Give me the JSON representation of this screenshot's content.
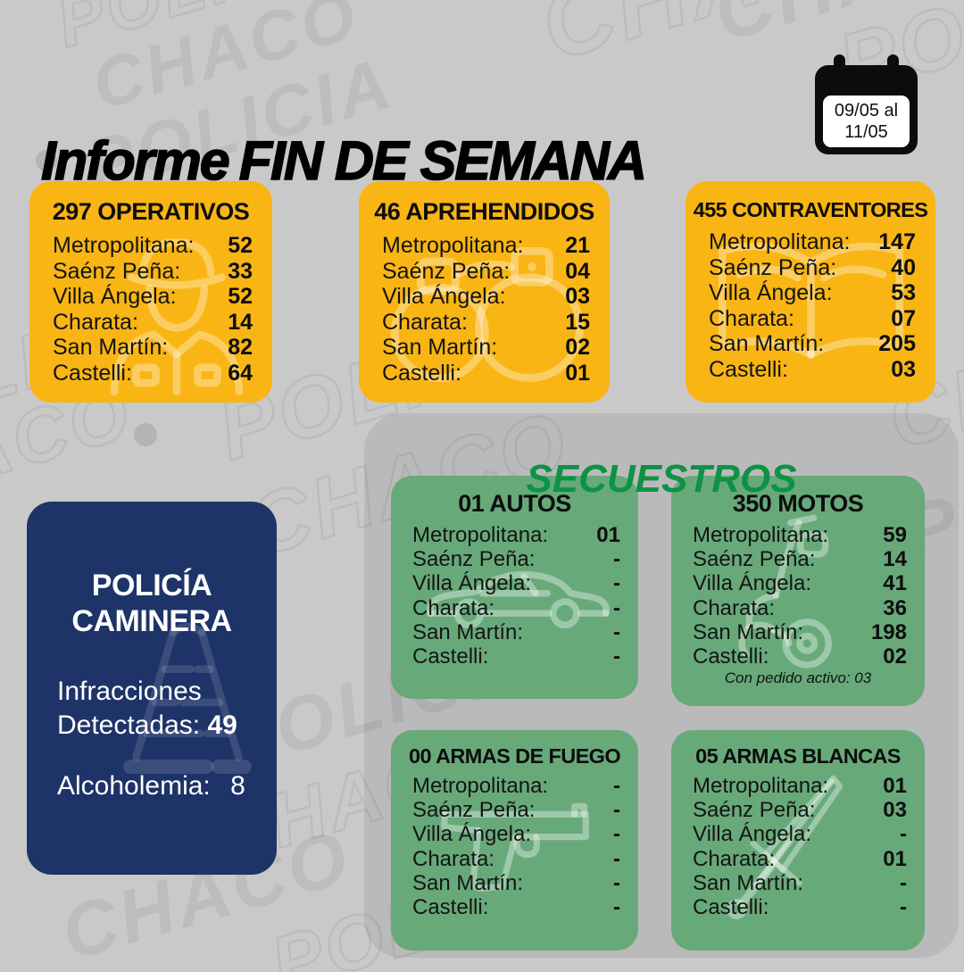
{
  "header": {
    "title_light": "Informe",
    "title_heavy": "FIN DE SEMANA",
    "calendar": {
      "line1": "09/05 al",
      "line2": "11/05"
    }
  },
  "summary_cards": [
    {
      "id": "operativos",
      "title": "297 OPERATIVOS",
      "icon": "police-officer-icon",
      "rows": [
        {
          "label": "Metropolitana:",
          "value": "52"
        },
        {
          "label": "Saénz Peña:",
          "value": "33"
        },
        {
          "label": "Villa Ángela:",
          "value": "52"
        },
        {
          "label": "Charata:",
          "value": "14"
        },
        {
          "label": "San Martín:",
          "value": "82"
        },
        {
          "label": "Castelli:",
          "value": "64"
        }
      ]
    },
    {
      "id": "aprehendidos",
      "title": "46 APREHENDIDOS",
      "icon": "handcuffs-icon",
      "rows": [
        {
          "label": "Metropolitana:",
          "value": "21"
        },
        {
          "label": "Saénz Peña:",
          "value": "04"
        },
        {
          "label": "Villa Ángela:",
          "value": "03"
        },
        {
          "label": "Charata:",
          "value": "15"
        },
        {
          "label": "San Martín:",
          "value": "02"
        },
        {
          "label": "Castelli:",
          "value": "01"
        }
      ]
    },
    {
      "id": "contraventores",
      "title": "455 CONTRAVENTORES",
      "icon": "open-book-icon",
      "rows": [
        {
          "label": "Metropolitana:",
          "value": "147"
        },
        {
          "label": "Saénz Peña:",
          "value": "40"
        },
        {
          "label": "Villa Ángela:",
          "value": "53"
        },
        {
          "label": "Charata:",
          "value": "07"
        },
        {
          "label": "San Martín:",
          "value": "205"
        },
        {
          "label": "Castelli:",
          "value": "03"
        }
      ]
    }
  ],
  "secuestros": {
    "title": "SECUESTROS",
    "cards": [
      {
        "id": "autos",
        "title": "01 AUTOS",
        "icon": "car-icon",
        "rows": [
          {
            "label": "Metropolitana:",
            "value": "01"
          },
          {
            "label": "Saénz Peña:",
            "value": "-"
          },
          {
            "label": "Villa Ángela:",
            "value": "-"
          },
          {
            "label": "Charata:",
            "value": "-"
          },
          {
            "label": "San Martín:",
            "value": "-"
          },
          {
            "label": "Castelli:",
            "value": "-"
          }
        ]
      },
      {
        "id": "motos",
        "title": "350 MOTOS",
        "icon": "scooter-icon",
        "footnote": "Con pedido activo: 03",
        "rows": [
          {
            "label": "Metropolitana:",
            "value": "59"
          },
          {
            "label": "Saénz Peña:",
            "value": "14"
          },
          {
            "label": "Villa Ángela:",
            "value": "41"
          },
          {
            "label": "Charata:",
            "value": "36"
          },
          {
            "label": "San Martín:",
            "value": "198"
          },
          {
            "label": "Castelli:",
            "value": "02"
          }
        ]
      },
      {
        "id": "armas_fuego",
        "title": "00 ARMAS DE FUEGO",
        "icon": "pistol-icon",
        "rows": [
          {
            "label": "Metropolitana:",
            "value": "-"
          },
          {
            "label": "Saénz Peña:",
            "value": "-"
          },
          {
            "label": "Villa Ángela:",
            "value": "-"
          },
          {
            "label": "Charata:",
            "value": "-"
          },
          {
            "label": "San Martín:",
            "value": "-"
          },
          {
            "label": "Castelli:",
            "value": "-"
          }
        ]
      },
      {
        "id": "armas_blancas",
        "title": "05 ARMAS BLANCAS",
        "icon": "dagger-icon",
        "rows": [
          {
            "label": "Metropolitana:",
            "value": "01"
          },
          {
            "label": "Saénz Peña:",
            "value": "03"
          },
          {
            "label": "Villa Ángela:",
            "value": "-"
          },
          {
            "label": "Charata:",
            "value": "01"
          },
          {
            "label": "San Martín:",
            "value": "-"
          },
          {
            "label": "Castelli:",
            "value": "-"
          }
        ]
      }
    ]
  },
  "caminera": {
    "title_line1": "POLICÍA",
    "title_line2": "CAMINERA",
    "infracciones_line1": "Infracciones",
    "infracciones_line2": "Detectadas:",
    "infracciones_value": "49",
    "alcoholemia_label": "Alcoholemia:",
    "alcoholemia_value": "8"
  },
  "watermark": {
    "police": "POLICIA",
    "chaco": "CHACO"
  },
  "colors": {
    "background": "#C9C9C9",
    "yellow_card": "#F9B513",
    "green_card": "#68A97A",
    "green_title": "#0E9245",
    "navy_card": "#1E3468"
  }
}
